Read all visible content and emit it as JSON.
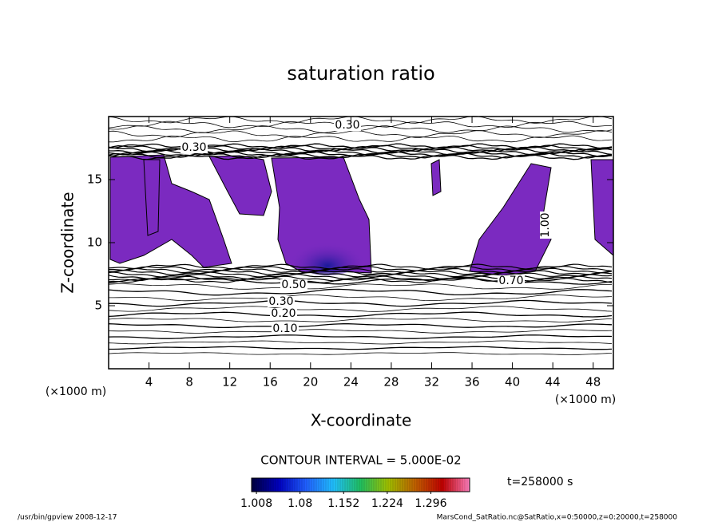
{
  "chart_data": {
    "type": "contour",
    "title": "saturation ratio",
    "x_label": "X-coordinate",
    "y_label": "Z-coordinate",
    "x_unit": "(×1000 m)",
    "y_unit": "(×1000 m)",
    "xlim": [
      0,
      50
    ],
    "xticks": [
      4,
      8,
      12,
      16,
      20,
      24,
      28,
      32,
      36,
      40,
      44,
      48
    ],
    "ylim": [
      0,
      20
    ],
    "yticks": [
      5,
      10,
      15
    ],
    "contour_labels": [
      {
        "value": 0.3,
        "label": "0.30"
      },
      {
        "value": 0.3,
        "label": "0.30"
      },
      {
        "value": 0.5,
        "label": "0.50"
      },
      {
        "value": 0.3,
        "label": "0.30"
      },
      {
        "value": 0.2,
        "label": "0.20"
      },
      {
        "value": 0.1,
        "label": "0.10"
      },
      {
        "value": 0.7,
        "label": "0.70"
      },
      {
        "value": 1.0,
        "label": "1.00"
      }
    ],
    "contour_interval_text": "CONTOUR INTERVAL = 5.000E-02",
    "time_text": "t=258000 s",
    "colorbar": {
      "clim": [
        1.0,
        1.36
      ],
      "ticks": [
        1.008,
        1.08,
        1.152,
        1.224,
        1.296
      ],
      "colors": [
        "#000040",
        "#0000c0",
        "#2060ff",
        "#20c0ff",
        "#20c060",
        "#a0c000",
        "#c06000",
        "#c00000",
        "#ff80c0"
      ]
    },
    "fill_color": "#7b2ac0",
    "footer_left": "/usr/bin/gpview  2008-12-17",
    "footer_right": "MarsCond_SatRatio.nc@SatRatio,x=0:50000,z=0:20000,t=258000"
  }
}
